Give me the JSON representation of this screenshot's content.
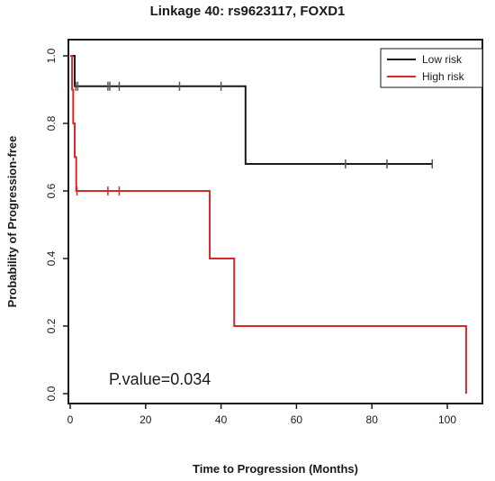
{
  "chart_data": {
    "type": "line",
    "step": true,
    "title": "Linkage 40: rs9623117, FOXD1",
    "xlabel": "Time to Progression (Months)",
    "ylabel": "Probability of Progression-free",
    "xlim": [
      0,
      107
    ],
    "ylim": [
      0,
      1
    ],
    "xticks": [
      0,
      20,
      40,
      60,
      80,
      100
    ],
    "yticks": [
      0.0,
      0.2,
      0.4,
      0.6,
      0.8,
      1.0
    ],
    "xtick_labels": [
      "0",
      "20",
      "40",
      "60",
      "80",
      "100"
    ],
    "ytick_labels": [
      "0.0",
      "0.2",
      "0.4",
      "0.6",
      "0.8",
      "1.0"
    ],
    "legend_position": "top-right",
    "annotation": "P.value=0.034",
    "series": [
      {
        "name": "Low risk",
        "color": "#1a1a1a",
        "steps": [
          [
            0,
            1.0
          ],
          [
            1.2,
            0.91
          ],
          [
            46.5,
            0.68
          ],
          [
            96,
            0.68
          ]
        ],
        "censor_x": [
          1.5,
          2.0,
          10.0,
          10.5,
          13.0,
          29.0,
          40.0,
          73.0,
          84.0,
          96.0
        ],
        "censor_y": [
          0.91,
          0.91,
          0.91,
          0.91,
          0.91,
          0.91,
          0.91,
          0.68,
          0.68,
          0.68
        ]
      },
      {
        "name": "High risk",
        "color": "#d42a2a",
        "steps": [
          [
            0,
            1.0
          ],
          [
            0.5,
            0.9
          ],
          [
            0.8,
            0.8
          ],
          [
            1.2,
            0.7
          ],
          [
            1.6,
            0.6
          ],
          [
            37,
            0.4
          ],
          [
            43.5,
            0.2
          ],
          [
            105,
            0.0
          ]
        ],
        "censor_x": [
          1.8,
          10.0,
          13.0
        ],
        "censor_y": [
          0.6,
          0.6,
          0.6
        ]
      }
    ]
  }
}
